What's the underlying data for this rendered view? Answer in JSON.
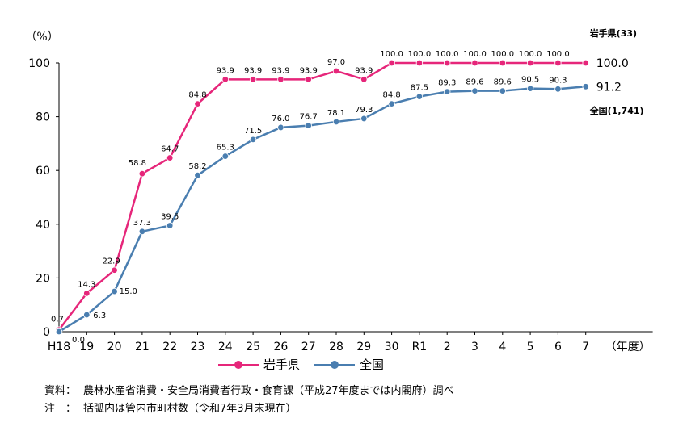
{
  "chart_data": {
    "type": "line",
    "ylabel": "（%）",
    "xlabel": "（年度）",
    "ylim": [
      0,
      100
    ],
    "yticks": [
      "0",
      "20",
      "40",
      "60",
      "80",
      "100"
    ],
    "categories": [
      "H18",
      "19",
      "20",
      "21",
      "22",
      "23",
      "24",
      "25",
      "26",
      "27",
      "28",
      "29",
      "30",
      "R1",
      "2",
      "3",
      "4",
      "5",
      "6",
      "7"
    ],
    "series": [
      {
        "name": "岩手県",
        "end_label": "岩手県(33)",
        "color": "#e6267a",
        "values": [
          0.7,
          14.3,
          22.9,
          58.8,
          64.7,
          84.8,
          93.9,
          93.9,
          93.9,
          93.9,
          97.0,
          93.9,
          100.0,
          100.0,
          100.0,
          100.0,
          100.0,
          100.0,
          100.0,
          100.0
        ],
        "labels": [
          "0.7",
          "14.3",
          "22.9",
          "58.8",
          "64.7",
          "84.8",
          "93.9",
          "93.9",
          "93.9",
          "93.9",
          "97.0",
          "93.9",
          "100.0",
          "100.0",
          "100.0",
          "100.0",
          "100.0",
          "100.0",
          "100.0",
          "100.0"
        ]
      },
      {
        "name": "全国",
        "end_label": "全国(1,741)",
        "color": "#4a7eb0",
        "values": [
          0.0,
          6.3,
          15.0,
          37.3,
          39.5,
          58.2,
          65.3,
          71.5,
          76.0,
          76.7,
          78.1,
          79.3,
          84.8,
          87.5,
          89.3,
          89.6,
          89.6,
          90.5,
          90.3,
          91.2
        ],
        "labels": [
          "0.0",
          "6.3",
          "15.0",
          "37.3",
          "39.5",
          "58.2",
          "65.3",
          "71.5",
          "76.0",
          "76.7",
          "78.1",
          "79.3",
          "84.8",
          "87.5",
          "89.3",
          "89.6",
          "89.6",
          "90.5",
          "90.3",
          "91.2"
        ]
      }
    ],
    "legend_position": "bottom"
  },
  "notes": [
    {
      "label": "資料：",
      "text": "農林水産省消費・安全局消費者行政・食育課（平成27年度までは内閣府）調べ"
    },
    {
      "label": "注　：",
      "text": "括弧内は管内市町村数（令和7年3月末現在）"
    }
  ]
}
